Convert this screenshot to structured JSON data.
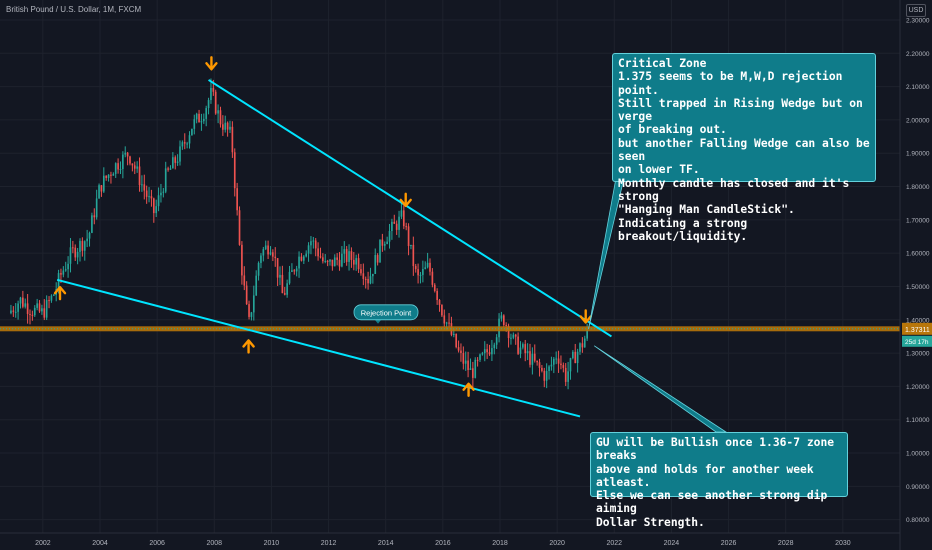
{
  "header": {
    "symbol_title": "British Pound / U.S. Dollar, 1M, FXCM",
    "currency": "USD"
  },
  "chart_data": {
    "type": "candlestick",
    "x_tick_labels": [
      "2002",
      "2004",
      "2006",
      "2008",
      "2010",
      "2012",
      "2014",
      "2016",
      "2018",
      "2020",
      "2022",
      "2024",
      "2026",
      "2028",
      "2030"
    ],
    "y_tick_labels": [
      "2.30000",
      "2.20000",
      "2.10000",
      "2.00000",
      "1.90000",
      "1.80000",
      "1.70000",
      "1.60000",
      "1.50000",
      "1.40000",
      "1.30000",
      "1.20000",
      "1.10000",
      "1.00000",
      "0.90000",
      "0.80000"
    ],
    "ylim": [
      0.76,
      2.36
    ],
    "xlim": [
      2000.5,
      2032.0
    ],
    "price_label": "1.37311",
    "countdown_label": "25d 17h",
    "last_price": 1.373,
    "rejection_level": 1.373,
    "annotation_rejection": "Rejection Point",
    "series_anchors": [
      [
        2000.8,
        1.42
      ],
      [
        2001.2,
        1.46
      ],
      [
        2001.6,
        1.43
      ],
      [
        2002.0,
        1.42
      ],
      [
        2002.4,
        1.48
      ],
      [
        2002.6,
        1.53
      ],
      [
        2003.0,
        1.6
      ],
      [
        2003.6,
        1.65
      ],
      [
        2004.0,
        1.8
      ],
      [
        2004.5,
        1.86
      ],
      [
        2005.0,
        1.9
      ],
      [
        2005.5,
        1.8
      ],
      [
        2005.9,
        1.72
      ],
      [
        2006.3,
        1.83
      ],
      [
        2006.8,
        1.9
      ],
      [
        2007.2,
        1.98
      ],
      [
        2007.6,
        2.02
      ],
      [
        2007.9,
        2.08
      ],
      [
        2008.2,
        2.0
      ],
      [
        2008.6,
        1.95
      ],
      [
        2008.9,
        1.6
      ],
      [
        2009.2,
        1.38
      ],
      [
        2009.6,
        1.6
      ],
      [
        2010.0,
        1.63
      ],
      [
        2010.4,
        1.47
      ],
      [
        2010.9,
        1.58
      ],
      [
        2011.4,
        1.64
      ],
      [
        2011.9,
        1.56
      ],
      [
        2012.5,
        1.59
      ],
      [
        2013.0,
        1.58
      ],
      [
        2013.4,
        1.52
      ],
      [
        2013.9,
        1.64
      ],
      [
        2014.6,
        1.71
      ],
      [
        2015.1,
        1.52
      ],
      [
        2015.5,
        1.56
      ],
      [
        2016.0,
        1.42
      ],
      [
        2016.6,
        1.29
      ],
      [
        2017.0,
        1.24
      ],
      [
        2017.6,
        1.31
      ],
      [
        2018.1,
        1.41
      ],
      [
        2018.5,
        1.33
      ],
      [
        2019.0,
        1.29
      ],
      [
        2019.6,
        1.23
      ],
      [
        2020.0,
        1.3
      ],
      [
        2020.3,
        1.23
      ],
      [
        2020.6,
        1.29
      ],
      [
        2020.9,
        1.33
      ],
      [
        2021.1,
        1.373
      ]
    ],
    "upper_trendline": [
      [
        2007.8,
        2.12
      ],
      [
        2021.9,
        1.35
      ]
    ],
    "lower_trendline": [
      [
        2002.5,
        1.52
      ],
      [
        2020.8,
        1.11
      ]
    ],
    "arrows": [
      {
        "x": 2007.9,
        "y": 2.17,
        "dir": "down"
      },
      {
        "x": 2014.7,
        "y": 1.76,
        "dir": "down"
      },
      {
        "x": 2021.0,
        "y": 1.41,
        "dir": "down"
      },
      {
        "x": 2002.6,
        "y": 1.48,
        "dir": "up"
      },
      {
        "x": 2009.2,
        "y": 1.32,
        "dir": "up"
      },
      {
        "x": 2016.9,
        "y": 1.19,
        "dir": "up"
      }
    ],
    "colors": {
      "up": "#26a69a",
      "down": "#ef5350",
      "trend": "#00e5ff",
      "level": "#b8760a",
      "arrow": "#ff9800",
      "callout": "#0f7c8a"
    }
  },
  "callouts": {
    "top": [
      "Critical Zone",
      "1.375 seems to be M,W,D rejection point.",
      "Still trapped in Rising Wedge but on verge",
      "of breaking out.",
      "but another Falling Wedge can also be seen",
      "on lower TF.",
      "Monthly candle has closed and it's strong",
      "\"Hanging Man CandleStick\".",
      "Indicating a strong breakout/liquidity."
    ],
    "bottom": [
      "GU will be Bullish once 1.36-7 zone breaks",
      "above and holds for another week atleast.",
      "Else we can see another strong dip aiming",
      "Dollar Strength."
    ]
  }
}
